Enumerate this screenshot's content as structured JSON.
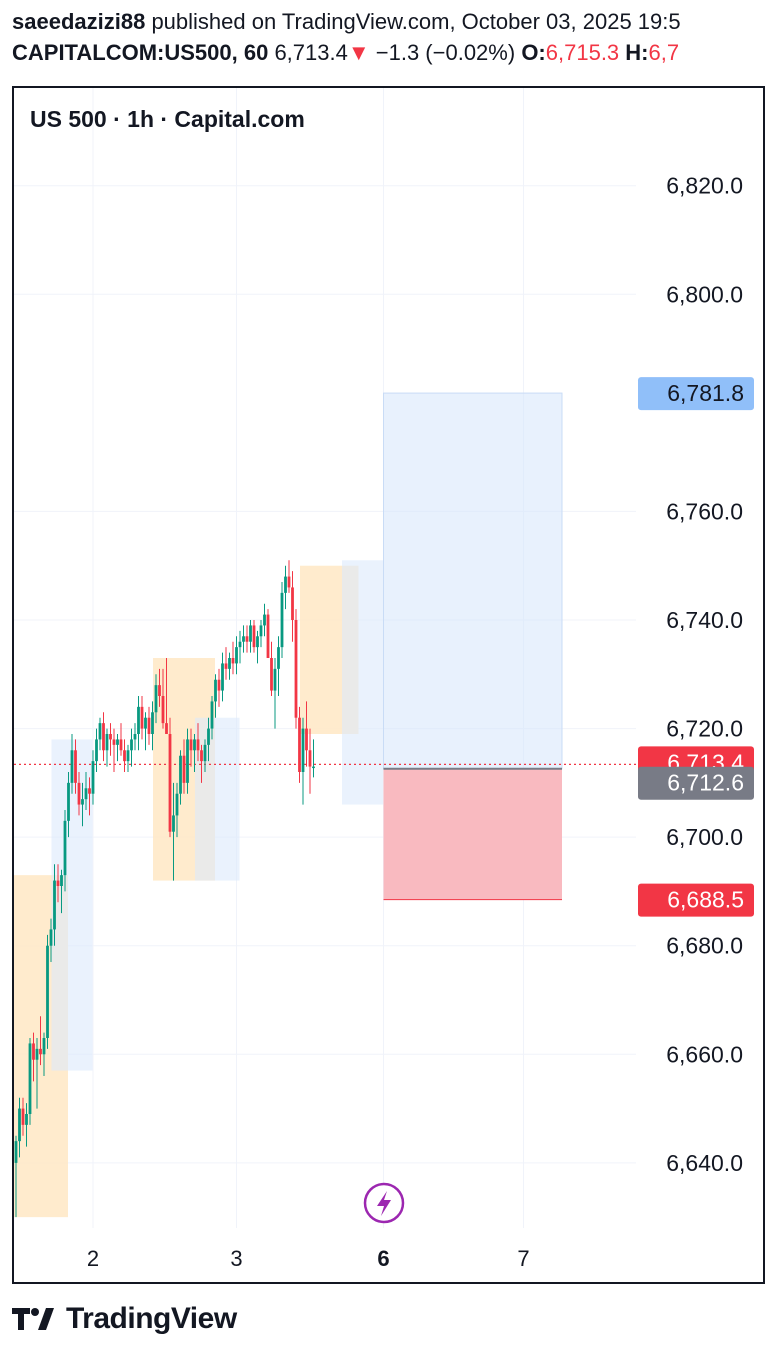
{
  "header": {
    "author": "saeedazizi88",
    "published_text": "published on TradingView.com, October 03, 2025 19:5",
    "symbol": "CAPITALCOM:US500, 60",
    "last_price": "6,713.4",
    "change_arrow": "▼",
    "change": "−1.3 (−0.02%)",
    "open_label": "O:",
    "open_value": "6,715.3",
    "high_label": "H:",
    "high_value": "6,7"
  },
  "chart_title": "US 500 · 1h · Capital.com",
  "footer": {
    "brand": "TradingView"
  },
  "colors": {
    "up": "#089981",
    "down": "#f23645",
    "target": "#90bff9",
    "price_line": "#f23645",
    "entry": "#787b86"
  },
  "chart_data": {
    "type": "candlestick",
    "x_ticks": [
      {
        "label": "2",
        "bold": false,
        "bar": 22
      },
      {
        "label": "3",
        "bold": false,
        "bar": 63
      },
      {
        "label": "6",
        "bold": true,
        "bar": 105
      },
      {
        "label": "7",
        "bold": false,
        "bar": 145
      }
    ],
    "y_ticks": [
      "6,640.0",
      "6,660.0",
      "6,680.0",
      "6,700.0",
      "6,720.0",
      "6,740.0",
      "6,760.0",
      "6,800.0",
      "6,820.0"
    ],
    "ylim": [
      6628,
      6838
    ],
    "price_labels": [
      {
        "value": 6781.8,
        "text": "6,781.8",
        "kind": "target"
      },
      {
        "value": 6713.4,
        "text": "6,713.4",
        "kind": "last"
      },
      {
        "value": 6712.6,
        "text": "6,712.6",
        "kind": "entry"
      },
      {
        "value": 6688.5,
        "text": "6,688.5",
        "kind": "stop"
      }
    ],
    "position": {
      "entry": 6712.6,
      "target": 6781.8,
      "stop": 6688.5,
      "start_bar": 105,
      "end_bar": 156
    },
    "zones": [
      {
        "type": "supply",
        "from_bar": 0,
        "to_bar": 14,
        "low": 6630,
        "high": 6693
      },
      {
        "type": "demand",
        "from_bar": 11,
        "to_bar": 21,
        "low": 6657,
        "high": 6718
      },
      {
        "type": "supply",
        "from_bar": 40,
        "to_bar": 56,
        "low": 6692,
        "high": 6733
      },
      {
        "type": "demand",
        "from_bar": 52,
        "to_bar": 63,
        "low": 6692,
        "high": 6722
      },
      {
        "type": "supply",
        "from_bar": 82,
        "to_bar": 97,
        "low": 6719,
        "high": 6750
      },
      {
        "type": "demand",
        "from_bar": 94,
        "to_bar": 104,
        "low": 6706,
        "high": 6751
      }
    ],
    "candles": [
      [
        6640,
        6645,
        6630,
        6644
      ],
      [
        6644,
        6652,
        6641,
        6650
      ],
      [
        6650,
        6652,
        6645,
        6647
      ],
      [
        6647,
        6651,
        6643,
        6649
      ],
      [
        6649,
        6663,
        6647,
        6662
      ],
      [
        6662,
        6664,
        6655,
        6659
      ],
      [
        6659,
        6663,
        6650,
        6661
      ],
      [
        6661,
        6667,
        6658,
        6660
      ],
      [
        6660,
        6664,
        6656,
        6663
      ],
      [
        6663,
        6682,
        6661,
        6680
      ],
      [
        6680,
        6685,
        6677,
        6683
      ],
      [
        6683,
        6695,
        6680,
        6692
      ],
      [
        6692,
        6695,
        6688,
        6691
      ],
      [
        6691,
        6694,
        6686,
        6693
      ],
      [
        6693,
        6705,
        6690,
        6703
      ],
      [
        6703,
        6712,
        6700,
        6710
      ],
      [
        6710,
        6719,
        6708,
        6716
      ],
      [
        6716,
        6718,
        6708,
        6710
      ],
      [
        6710,
        6712,
        6704,
        6706
      ],
      [
        6706,
        6710,
        6702,
        6707
      ],
      [
        6707,
        6712,
        6705,
        6709
      ],
      [
        6709,
        6711,
        6704,
        6708
      ],
      [
        6708,
        6716,
        6706,
        6714
      ],
      [
        6714,
        6720,
        6712,
        6718
      ],
      [
        6718,
        6722,
        6716,
        6721
      ],
      [
        6721,
        6723,
        6714,
        6716
      ],
      [
        6716,
        6720,
        6713,
        6719
      ],
      [
        6719,
        6721,
        6715,
        6718
      ],
      [
        6718,
        6720,
        6712,
        6717
      ],
      [
        6717,
        6719,
        6714,
        6718
      ],
      [
        6718,
        6721,
        6715,
        6716
      ],
      [
        6716,
        6718,
        6712,
        6714
      ],
      [
        6714,
        6717,
        6712,
        6716
      ],
      [
        6716,
        6720,
        6713,
        6718
      ],
      [
        6718,
        6721,
        6716,
        6719
      ],
      [
        6719,
        6726,
        6716,
        6724
      ],
      [
        6724,
        6726,
        6718,
        6720
      ],
      [
        6720,
        6723,
        6716,
        6722
      ],
      [
        6722,
        6724,
        6717,
        6719
      ],
      [
        6719,
        6725,
        6716,
        6723
      ],
      [
        6723,
        6730,
        6721,
        6728
      ],
      [
        6728,
        6731,
        6724,
        6726
      ],
      [
        6726,
        6731,
        6720,
        6721
      ],
      [
        6721,
        6733,
        6719,
        6719
      ],
      [
        6719,
        6722,
        6700,
        6701
      ],
      [
        6701,
        6710,
        6692,
        6704
      ],
      [
        6704,
        6710,
        6700,
        6708
      ],
      [
        6708,
        6716,
        6706,
        6715
      ],
      [
        6715,
        6718,
        6708,
        6710
      ],
      [
        6710,
        6720,
        6708,
        6718
      ],
      [
        6718,
        6720,
        6713,
        6716
      ],
      [
        6716,
        6719,
        6712,
        6718
      ],
      [
        6718,
        6721,
        6714,
        6716
      ],
      [
        6716,
        6717,
        6710,
        6714
      ],
      [
        6714,
        6718,
        6712,
        6717
      ],
      [
        6717,
        6722,
        6714,
        6720
      ],
      [
        6720,
        6726,
        6718,
        6725
      ],
      [
        6725,
        6730,
        6722,
        6729
      ],
      [
        6729,
        6731,
        6724,
        6727
      ],
      [
        6727,
        6734,
        6725,
        6732
      ],
      [
        6732,
        6735,
        6729,
        6731
      ],
      [
        6731,
        6734,
        6729,
        6733
      ],
      [
        6733,
        6736,
        6730,
        6732
      ],
      [
        6732,
        6737,
        6730,
        6735
      ],
      [
        6735,
        6738,
        6732,
        6736
      ],
      [
        6736,
        6739,
        6734,
        6737
      ],
      [
        6737,
        6739,
        6734,
        6736
      ],
      [
        6736,
        6740,
        6734,
        6739
      ],
      [
        6739,
        6740,
        6734,
        6735
      ],
      [
        6735,
        6738,
        6732,
        6737
      ],
      [
        6737,
        6740,
        6735,
        6739
      ],
      [
        6739,
        6743,
        6737,
        6741
      ],
      [
        6741,
        6742,
        6733,
        6733
      ],
      [
        6733,
        6736,
        6726,
        6727
      ],
      [
        6727,
        6733,
        6720,
        6731
      ],
      [
        6731,
        6737,
        6726,
        6735
      ],
      [
        6735,
        6747,
        6733,
        6745
      ],
      [
        6745,
        6750,
        6742,
        6748
      ],
      [
        6748,
        6751,
        6745,
        6746
      ],
      [
        6746,
        6749,
        6736,
        6740
      ],
      [
        6740,
        6742,
        6720,
        6722
      ],
      [
        6722,
        6724,
        6710,
        6712
      ],
      [
        6712,
        6722,
        6706,
        6720
      ],
      [
        6720,
        6725,
        6713,
        6716
      ],
      [
        6716,
        6720,
        6708,
        6713
      ],
      [
        6713,
        6718,
        6711,
        6713
      ]
    ]
  }
}
